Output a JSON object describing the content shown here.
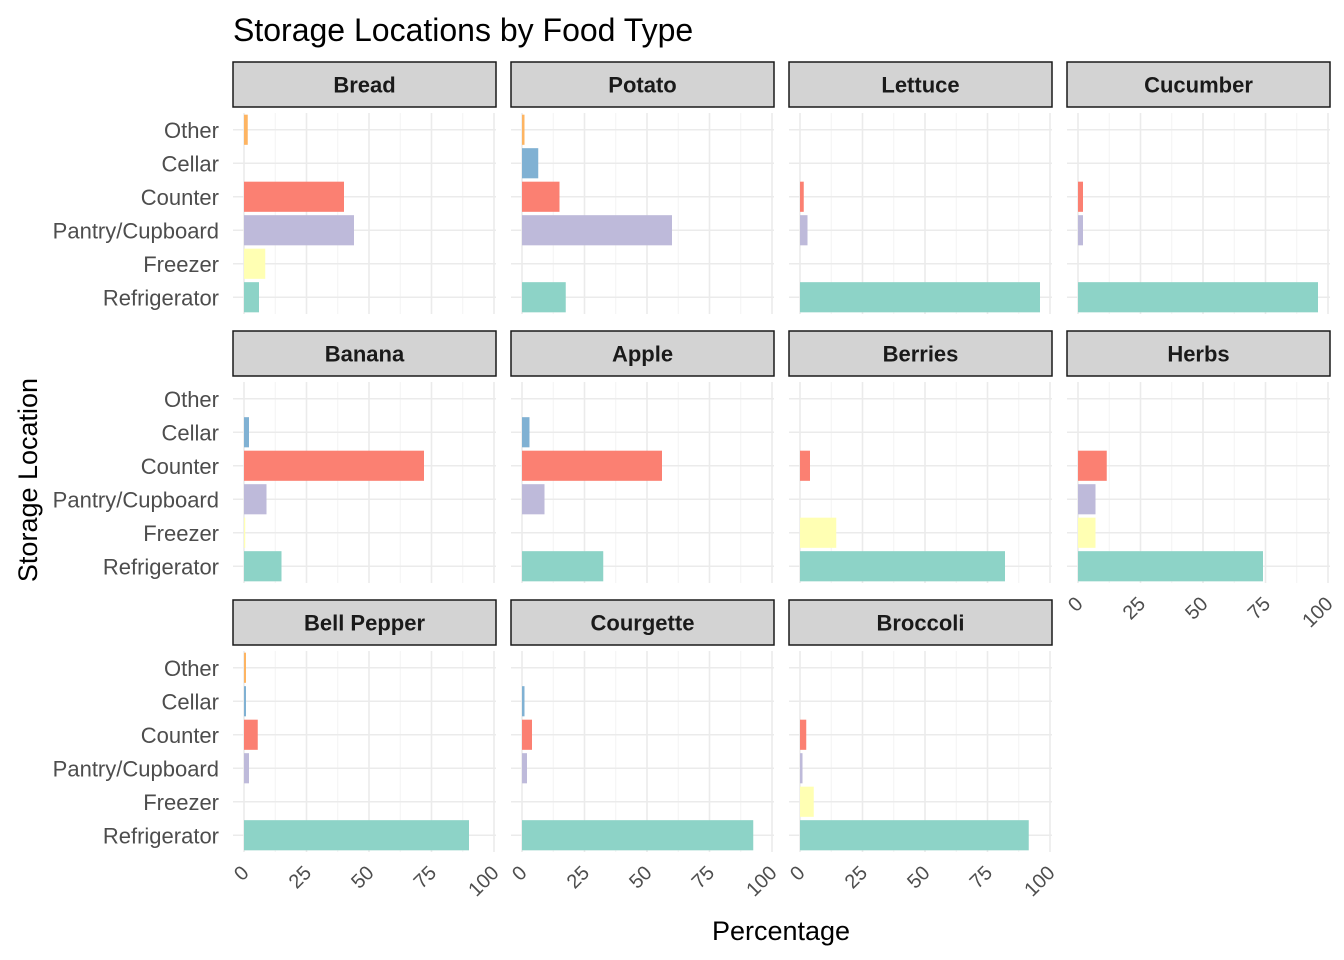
{
  "chart_data": {
    "type": "bar",
    "orientation": "horizontal",
    "title": "Storage Locations by Food Type",
    "xlabel": "Percentage",
    "ylabel": "Storage Location",
    "xlim": [
      0,
      100
    ],
    "x_ticks": [
      0,
      25,
      50,
      75,
      100
    ],
    "grid": true,
    "legend": "none",
    "categories": [
      "Other",
      "Cellar",
      "Counter",
      "Pantry/Cupboard",
      "Freezer",
      "Refrigerator"
    ],
    "colors": {
      "Other": "#fdb462",
      "Cellar": "#80b1d3",
      "Counter": "#fb8072",
      "Pantry/Cupboard": "#bebada",
      "Freezer": "#ffffb3",
      "Refrigerator": "#8dd3c7"
    },
    "facets": [
      {
        "name": "Bread",
        "values": {
          "Other": 1.5,
          "Cellar": 0,
          "Counter": 40,
          "Pantry/Cupboard": 44,
          "Freezer": 8.5,
          "Refrigerator": 6
        }
      },
      {
        "name": "Potato",
        "values": {
          "Other": 1,
          "Cellar": 6.5,
          "Counter": 15,
          "Pantry/Cupboard": 60,
          "Freezer": 0,
          "Refrigerator": 17.5
        }
      },
      {
        "name": "Lettuce",
        "values": {
          "Other": 0,
          "Cellar": 0,
          "Counter": 1.5,
          "Pantry/Cupboard": 3,
          "Freezer": 0,
          "Refrigerator": 96
        }
      },
      {
        "name": "Cucumber",
        "values": {
          "Other": 0,
          "Cellar": 0,
          "Counter": 2,
          "Pantry/Cupboard": 2,
          "Freezer": 0,
          "Refrigerator": 96
        }
      },
      {
        "name": "Banana",
        "values": {
          "Other": 0,
          "Cellar": 2,
          "Counter": 72,
          "Pantry/Cupboard": 9,
          "Freezer": 0.5,
          "Refrigerator": 15
        }
      },
      {
        "name": "Apple",
        "values": {
          "Other": 0,
          "Cellar": 3,
          "Counter": 56,
          "Pantry/Cupboard": 9,
          "Freezer": 0,
          "Refrigerator": 32.5
        }
      },
      {
        "name": "Berries",
        "values": {
          "Other": 0,
          "Cellar": 0,
          "Counter": 4,
          "Pantry/Cupboard": 0,
          "Freezer": 14.5,
          "Refrigerator": 82
        }
      },
      {
        "name": "Herbs",
        "values": {
          "Other": 0,
          "Cellar": 0,
          "Counter": 11.5,
          "Pantry/Cupboard": 7,
          "Freezer": 7,
          "Refrigerator": 74
        }
      },
      {
        "name": "Bell Pepper",
        "values": {
          "Other": 0.8,
          "Cellar": 0.8,
          "Counter": 5.5,
          "Pantry/Cupboard": 2,
          "Freezer": 0,
          "Refrigerator": 90
        }
      },
      {
        "name": "Courgette",
        "values": {
          "Other": 0,
          "Cellar": 1,
          "Counter": 4,
          "Pantry/Cupboard": 2,
          "Freezer": 0,
          "Refrigerator": 92.5
        }
      },
      {
        "name": "Broccoli",
        "values": {
          "Other": 0,
          "Cellar": 0,
          "Counter": 2.5,
          "Pantry/Cupboard": 1,
          "Freezer": 5.5,
          "Refrigerator": 91.5
        }
      }
    ]
  }
}
